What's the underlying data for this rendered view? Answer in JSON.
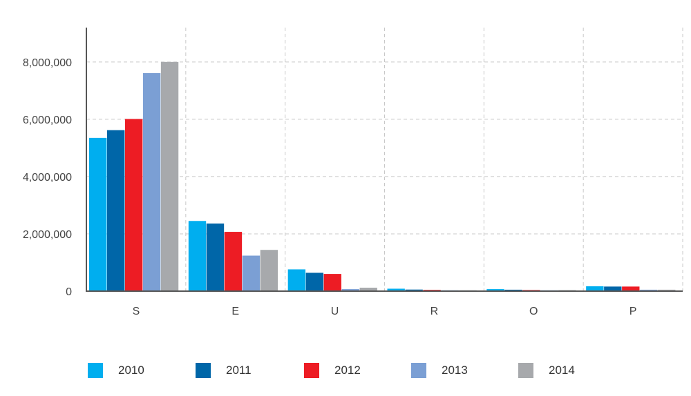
{
  "chart_data": {
    "type": "bar",
    "categories": [
      "S",
      "E",
      "U",
      "R",
      "O",
      "P"
    ],
    "series": [
      {
        "name": "2010",
        "color": "#00AEEF",
        "values": [
          5350000,
          2450000,
          760000,
          85000,
          70000,
          170000
        ]
      },
      {
        "name": "2011",
        "color": "#0066A8",
        "values": [
          5620000,
          2360000,
          640000,
          55000,
          50000,
          160000
        ]
      },
      {
        "name": "2012",
        "color": "#ED1C24",
        "values": [
          6010000,
          2070000,
          600000,
          45000,
          40000,
          160000
        ]
      },
      {
        "name": "2013",
        "color": "#7B9FD4",
        "values": [
          7610000,
          1240000,
          70000,
          30000,
          30000,
          50000
        ]
      },
      {
        "name": "2014",
        "color": "#A7A9AC",
        "values": [
          8000000,
          1440000,
          120000,
          30000,
          35000,
          50000
        ]
      }
    ],
    "y_ticks": [
      "0",
      "2,000,000",
      "4,000,000",
      "6,000,000",
      "8,000,000"
    ],
    "ylim": [
      0,
      9200000
    ],
    "grid": true,
    "legend_position": "bottom"
  }
}
